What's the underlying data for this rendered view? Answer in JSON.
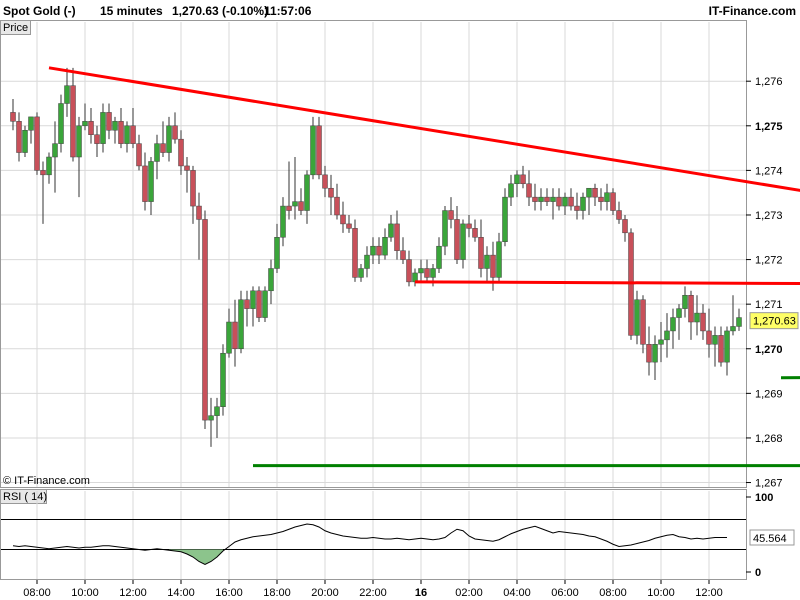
{
  "header": {
    "instrument": "Spot Gold (-)",
    "timeframe": "15 minutes",
    "quote": "1,270.63 (-0.10%)",
    "time": "11:57:06",
    "brand": "IT-Finance.com"
  },
  "price_panel": {
    "label": "Price",
    "copyright": "© IT-Finance.com"
  },
  "rsi_panel": {
    "label": "RSI ( 14)",
    "value_label": "45.564"
  },
  "colors": {
    "bull": "#3aa53a",
    "bear": "#c8505a",
    "resistance": "#ff0000",
    "support": "#008000",
    "grid": "#d9d9d9",
    "rsi_fill": "#8cc48c"
  },
  "chart_data": [
    {
      "type": "candlestick",
      "title": "Spot Gold (-) 15 minutes",
      "ylabel": "Price",
      "y_ticks": [
        "1,267",
        "1,268",
        "1,269",
        "1,270",
        "1,271",
        "1,272",
        "1,273",
        "1,274",
        "1,275",
        "1,276"
      ],
      "y_tick_values": [
        1267,
        1268,
        1269,
        1270,
        1271,
        1272,
        1273,
        1274,
        1275,
        1276
      ],
      "y_tick_bold": [
        false,
        false,
        false,
        true,
        false,
        false,
        false,
        false,
        true,
        false
      ],
      "ylim": [
        1266.9,
        1277.35
      ],
      "x_ticks": [
        "08:00",
        "10:00",
        "12:00",
        "14:00",
        "16:00",
        "18:00",
        "20:00",
        "22:00",
        "16",
        "02:00",
        "04:00",
        "06:00",
        "08:00",
        "10:00",
        "12:00"
      ],
      "x_tick_index": [
        4,
        12,
        20,
        28,
        36,
        44,
        52,
        60,
        68,
        76,
        84,
        92,
        100,
        108,
        116
      ],
      "x_tick_bold": [
        false,
        false,
        false,
        false,
        false,
        false,
        false,
        false,
        true,
        false,
        false,
        false,
        false,
        false,
        false
      ],
      "last_price_label": "1,270.63",
      "last_price": 1270.63,
      "candles": [
        [
          1275.3,
          1275.6,
          1274.9,
          1275.1
        ],
        [
          1275.1,
          1275.3,
          1274.2,
          1274.4
        ],
        [
          1274.4,
          1275.0,
          1274.3,
          1274.9
        ],
        [
          1274.9,
          1275.2,
          1274.6,
          1275.2
        ],
        [
          1275.2,
          1275.3,
          1273.9,
          1274.0
        ],
        [
          1274.0,
          1274.2,
          1272.8,
          1273.9
        ],
        [
          1273.9,
          1274.4,
          1273.7,
          1274.3
        ],
        [
          1274.3,
          1275.1,
          1273.5,
          1274.6
        ],
        [
          1274.6,
          1275.7,
          1274.4,
          1275.5
        ],
        [
          1275.5,
          1276.3,
          1275.2,
          1275.9
        ],
        [
          1275.9,
          1276.3,
          1274.2,
          1274.3
        ],
        [
          1274.3,
          1275.2,
          1273.4,
          1275.0
        ],
        [
          1275.0,
          1275.5,
          1274.9,
          1275.1
        ],
        [
          1275.1,
          1275.4,
          1274.6,
          1274.8
        ],
        [
          1274.8,
          1275.0,
          1274.3,
          1274.6
        ],
        [
          1274.6,
          1275.5,
          1274.4,
          1275.3
        ],
        [
          1275.3,
          1275.5,
          1274.7,
          1274.9
        ],
        [
          1274.9,
          1275.2,
          1274.6,
          1275.1
        ],
        [
          1275.1,
          1275.4,
          1274.5,
          1274.6
        ],
        [
          1274.6,
          1275.1,
          1274.4,
          1275.0
        ],
        [
          1275.0,
          1275.4,
          1274.5,
          1274.6
        ],
        [
          1274.6,
          1274.8,
          1274.0,
          1274.1
        ],
        [
          1274.1,
          1274.4,
          1273.1,
          1273.3
        ],
        [
          1273.3,
          1274.3,
          1273.0,
          1274.2
        ],
        [
          1274.2,
          1274.8,
          1273.8,
          1274.6
        ],
        [
          1274.6,
          1275.1,
          1274.3,
          1274.4
        ],
        [
          1274.4,
          1275.2,
          1274.2,
          1275.0
        ],
        [
          1275.0,
          1275.3,
          1274.6,
          1274.7
        ],
        [
          1274.7,
          1274.9,
          1273.9,
          1274.1
        ],
        [
          1274.1,
          1274.3,
          1273.5,
          1274.0
        ],
        [
          1274.0,
          1274.1,
          1272.8,
          1273.2
        ],
        [
          1273.2,
          1273.5,
          1272.0,
          1272.9
        ],
        [
          1272.9,
          1273.1,
          1268.2,
          1268.4
        ],
        [
          1268.4,
          1268.9,
          1267.8,
          1268.5
        ],
        [
          1268.5,
          1268.9,
          1268.0,
          1268.7
        ],
        [
          1268.7,
          1270.1,
          1268.5,
          1269.9
        ],
        [
          1269.9,
          1270.9,
          1269.8,
          1270.6
        ],
        [
          1270.6,
          1271.1,
          1269.6,
          1270.0
        ],
        [
          1270.0,
          1271.3,
          1269.9,
          1271.1
        ],
        [
          1271.1,
          1271.3,
          1270.5,
          1270.9
        ],
        [
          1270.9,
          1271.4,
          1270.5,
          1271.3
        ],
        [
          1271.3,
          1271.4,
          1270.6,
          1270.7
        ],
        [
          1270.7,
          1271.4,
          1270.6,
          1271.3
        ],
        [
          1271.3,
          1272.0,
          1271.0,
          1271.8
        ],
        [
          1271.8,
          1272.8,
          1271.7,
          1272.5
        ],
        [
          1272.5,
          1273.4,
          1272.3,
          1273.2
        ],
        [
          1273.2,
          1274.2,
          1272.9,
          1273.1
        ],
        [
          1273.2,
          1274.3,
          1272.9,
          1273.3
        ],
        [
          1273.3,
          1273.6,
          1273.0,
          1273.1
        ],
        [
          1273.1,
          1274.0,
          1272.8,
          1273.9
        ],
        [
          1273.9,
          1275.2,
          1273.8,
          1275.0
        ],
        [
          1275.0,
          1275.2,
          1273.8,
          1273.9
        ],
        [
          1273.9,
          1274.1,
          1273.4,
          1273.6
        ],
        [
          1273.6,
          1273.9,
          1273.0,
          1273.4
        ],
        [
          1273.4,
          1273.7,
          1272.9,
          1273.0
        ],
        [
          1273.0,
          1273.3,
          1272.6,
          1272.8
        ],
        [
          1272.8,
          1273.0,
          1272.6,
          1272.7
        ],
        [
          1272.7,
          1272.9,
          1271.5,
          1271.6
        ],
        [
          1271.6,
          1271.9,
          1271.5,
          1271.8
        ],
        [
          1271.8,
          1272.3,
          1271.6,
          1272.1
        ],
        [
          1272.1,
          1272.5,
          1271.9,
          1272.3
        ],
        [
          1272.3,
          1272.5,
          1271.9,
          1272.1
        ],
        [
          1272.1,
          1272.7,
          1272.0,
          1272.5
        ],
        [
          1272.5,
          1273.0,
          1272.4,
          1272.8
        ],
        [
          1272.8,
          1273.1,
          1272.0,
          1272.2
        ],
        [
          1272.2,
          1272.5,
          1271.9,
          1272.0
        ],
        [
          1272.0,
          1272.2,
          1271.4,
          1271.5
        ],
        [
          1271.5,
          1271.8,
          1271.4,
          1271.7
        ],
        [
          1271.7,
          1272.0,
          1271.5,
          1271.8
        ],
        [
          1271.8,
          1272.0,
          1271.5,
          1271.6
        ],
        [
          1271.6,
          1271.9,
          1271.4,
          1271.8
        ],
        [
          1271.8,
          1272.5,
          1271.7,
          1272.3
        ],
        [
          1272.3,
          1273.2,
          1272.1,
          1273.1
        ],
        [
          1273.1,
          1273.4,
          1272.7,
          1272.9
        ],
        [
          1272.9,
          1273.2,
          1271.9,
          1272.0
        ],
        [
          1272.0,
          1272.9,
          1271.8,
          1272.8
        ],
        [
          1272.8,
          1273.0,
          1272.5,
          1272.7
        ],
        [
          1272.7,
          1272.9,
          1272.4,
          1272.5
        ],
        [
          1272.5,
          1272.9,
          1271.6,
          1271.8
        ],
        [
          1271.8,
          1272.3,
          1271.5,
          1272.1
        ],
        [
          1272.1,
          1272.4,
          1271.3,
          1271.6
        ],
        [
          1271.6,
          1272.6,
          1271.5,
          1272.4
        ],
        [
          1272.4,
          1273.6,
          1272.3,
          1273.4
        ],
        [
          1273.4,
          1273.9,
          1273.2,
          1273.7
        ],
        [
          1273.7,
          1274.0,
          1273.4,
          1273.9
        ],
        [
          1273.9,
          1274.1,
          1273.6,
          1273.7
        ],
        [
          1273.7,
          1274.0,
          1273.2,
          1273.4
        ],
        [
          1273.4,
          1273.7,
          1273.1,
          1273.3
        ],
        [
          1273.3,
          1273.6,
          1273.1,
          1273.4
        ],
        [
          1273.4,
          1273.6,
          1273.2,
          1273.3
        ],
        [
          1273.3,
          1273.6,
          1272.9,
          1273.4
        ],
        [
          1273.4,
          1273.6,
          1273.1,
          1273.2
        ],
        [
          1273.2,
          1273.5,
          1273.0,
          1273.4
        ],
        [
          1273.4,
          1273.6,
          1273.1,
          1273.2
        ],
        [
          1273.2,
          1273.5,
          1272.9,
          1273.1
        ],
        [
          1273.1,
          1273.5,
          1272.9,
          1273.4
        ],
        [
          1273.4,
          1273.6,
          1273.0,
          1273.6
        ],
        [
          1273.6,
          1273.7,
          1273.2,
          1273.4
        ],
        [
          1273.4,
          1273.6,
          1273.1,
          1273.3
        ],
        [
          1273.3,
          1273.7,
          1273.1,
          1273.5
        ],
        [
          1273.5,
          1273.6,
          1273.0,
          1273.1
        ],
        [
          1273.1,
          1273.3,
          1272.8,
          1272.9
        ],
        [
          1272.9,
          1273.0,
          1272.4,
          1272.6
        ],
        [
          1272.6,
          1272.7,
          1270.2,
          1270.3
        ],
        [
          1270.3,
          1271.3,
          1270.1,
          1271.1
        ],
        [
          1271.1,
          1271.2,
          1269.9,
          1270.1
        ],
        [
          1270.1,
          1270.5,
          1269.4,
          1269.7
        ],
        [
          1269.7,
          1270.3,
          1269.3,
          1270.1
        ],
        [
          1270.1,
          1270.6,
          1269.7,
          1270.2
        ],
        [
          1270.2,
          1270.8,
          1269.8,
          1270.4
        ],
        [
          1270.4,
          1270.9,
          1270.0,
          1270.7
        ],
        [
          1270.7,
          1271.0,
          1270.2,
          1270.9
        ],
        [
          1270.9,
          1271.4,
          1270.7,
          1271.2
        ],
        [
          1271.2,
          1271.3,
          1270.2,
          1270.6
        ],
        [
          1270.6,
          1271.2,
          1270.3,
          1270.8
        ],
        [
          1270.8,
          1271.0,
          1270.2,
          1270.4
        ],
        [
          1270.4,
          1270.9,
          1269.8,
          1270.1
        ],
        [
          1270.1,
          1270.5,
          1269.6,
          1270.3
        ],
        [
          1270.3,
          1270.5,
          1269.6,
          1269.7
        ],
        [
          1269.7,
          1270.5,
          1269.4,
          1270.4
        ],
        [
          1270.4,
          1271.2,
          1270.3,
          1270.5
        ],
        [
          1270.5,
          1270.9,
          1270.4,
          1270.7
        ]
      ],
      "trendlines": [
        {
          "name": "resistance-descending",
          "from": [
            6,
            1276.3
          ],
          "to": [
            154,
            1273.05
          ],
          "color": "#ff0000"
        },
        {
          "name": "resistance-horizontal",
          "from": [
            67,
            1271.5
          ],
          "to": [
            154,
            1271.45
          ],
          "color": "#ff0000"
        },
        {
          "name": "support-recent-low",
          "from": [
            128,
            1269.35
          ],
          "to": [
            154,
            1269.38
          ],
          "color": "#008000"
        },
        {
          "name": "support-major-low",
          "from": [
            40,
            1267.38
          ],
          "to": [
            154,
            1267.38
          ],
          "color": "#008000"
        }
      ]
    },
    {
      "type": "line",
      "title": "RSI ( 14)",
      "y_ticks": [
        "100",
        "0"
      ],
      "ylim": [
        0,
        100
      ],
      "upper_level": 70,
      "lower_level": 30,
      "last_value": 45.564,
      "values": [
        35,
        34,
        35,
        34,
        33,
        32,
        31,
        32,
        33,
        34,
        33,
        32,
        33,
        33,
        34,
        35,
        35,
        34,
        33,
        32,
        31,
        30,
        29,
        30,
        31,
        30,
        29,
        28,
        27,
        24,
        20,
        14,
        10,
        14,
        20,
        28,
        34,
        40,
        43,
        45,
        47,
        48,
        49,
        50,
        52,
        54,
        57,
        60,
        62,
        64,
        63,
        60,
        55,
        52,
        50,
        48,
        47,
        46,
        45,
        45,
        46,
        45,
        44,
        44,
        45,
        44,
        43,
        44,
        45,
        44,
        43,
        44,
        46,
        52,
        57,
        55,
        48,
        44,
        43,
        42,
        41,
        43,
        47,
        51,
        54,
        57,
        59,
        61,
        58,
        55,
        52,
        54,
        53,
        52,
        51,
        50,
        48,
        47,
        44,
        41,
        37,
        34,
        35,
        36,
        38,
        40,
        42,
        45,
        47,
        49,
        50,
        47,
        46,
        44,
        45,
        44,
        45,
        46,
        46,
        46
      ]
    }
  ]
}
